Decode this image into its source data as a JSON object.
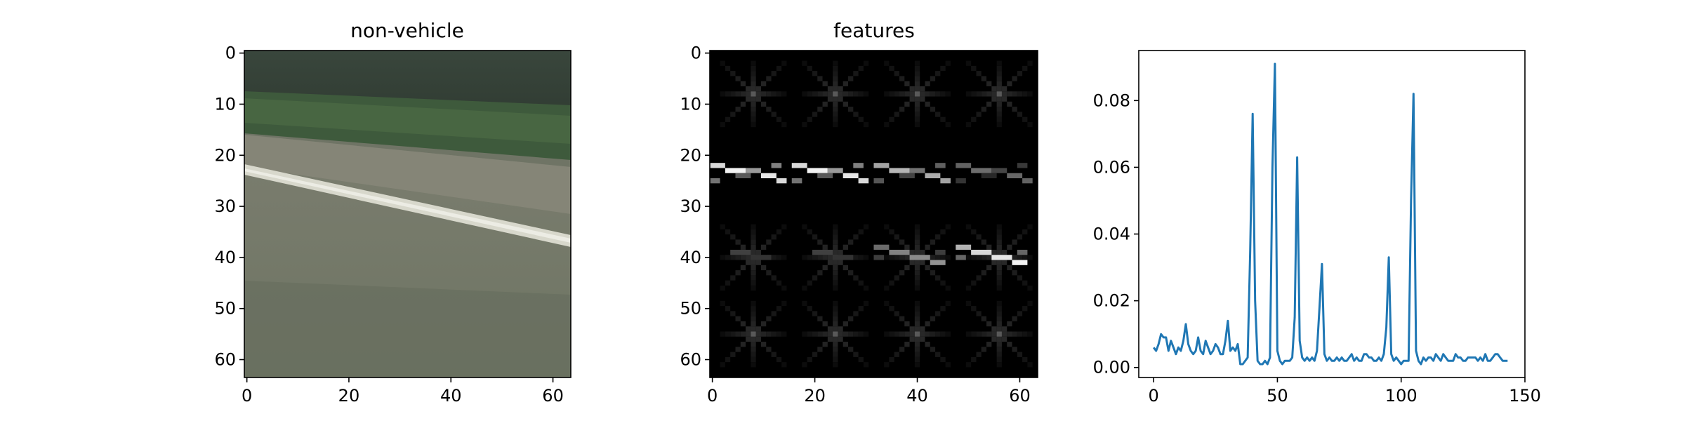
{
  "figure": {
    "background": "#ffffff"
  },
  "panels": [
    {
      "title": "non-vehicle",
      "image": "road-scene",
      "description": "",
      "xticks": [
        0,
        20,
        40,
        60
      ],
      "yticks": [
        0,
        10,
        20,
        30,
        40,
        50,
        60
      ],
      "extent": [
        0,
        64,
        0,
        64
      ]
    },
    {
      "title": "features",
      "image": "hog-feature-grid",
      "xticks": [
        0,
        20,
        40,
        60
      ],
      "yticks": [
        0,
        10,
        20,
        30,
        40,
        50,
        60
      ],
      "extent": [
        0,
        64,
        0,
        64
      ]
    }
  ],
  "chart_data": {
    "type": "line",
    "title": "",
    "xlabel": "",
    "ylabel": "",
    "xlim": [
      -6,
      150
    ],
    "ylim": [
      -0.003,
      0.095
    ],
    "xticks": [
      0,
      50,
      100,
      150
    ],
    "yticks": [
      0.0,
      0.02,
      0.04,
      0.06,
      0.08
    ],
    "ytick_labels": [
      "0.00",
      "0.02",
      "0.04",
      "0.06",
      "0.08"
    ],
    "grid": false,
    "series": [
      {
        "color": "#1f77b4",
        "x": [
          0,
          1,
          2,
          3,
          4,
          5,
          6,
          7,
          8,
          9,
          10,
          11,
          12,
          13,
          14,
          15,
          16,
          17,
          18,
          19,
          20,
          21,
          22,
          23,
          24,
          25,
          26,
          27,
          28,
          29,
          30,
          31,
          32,
          33,
          34,
          35,
          36,
          37,
          38,
          39,
          40,
          41,
          42,
          43,
          44,
          45,
          46,
          47,
          48,
          49,
          50,
          51,
          52,
          53,
          54,
          55,
          56,
          57,
          58,
          59,
          60,
          61,
          62,
          63,
          64,
          65,
          66,
          67,
          68,
          69,
          70,
          71,
          72,
          73,
          74,
          75,
          76,
          77,
          78,
          79,
          80,
          81,
          82,
          83,
          84,
          85,
          86,
          87,
          88,
          89,
          90,
          91,
          92,
          93,
          94,
          95,
          96,
          97,
          98,
          99,
          100,
          101,
          102,
          103,
          104,
          105,
          106,
          107,
          108,
          109,
          110,
          111,
          112,
          113,
          114,
          115,
          116,
          117,
          118,
          119,
          120,
          121,
          122,
          123,
          124,
          125,
          126,
          127,
          128,
          129,
          130,
          131,
          132,
          133,
          134,
          135,
          136,
          137,
          138,
          139,
          140,
          141,
          142,
          143
        ],
        "values": [
          0.006,
          0.005,
          0.007,
          0.01,
          0.009,
          0.009,
          0.005,
          0.008,
          0.006,
          0.004,
          0.006,
          0.005,
          0.008,
          0.013,
          0.007,
          0.005,
          0.004,
          0.005,
          0.009,
          0.005,
          0.004,
          0.008,
          0.006,
          0.004,
          0.005,
          0.007,
          0.006,
          0.004,
          0.004,
          0.008,
          0.014,
          0.005,
          0.006,
          0.005,
          0.007,
          0.001,
          0.001,
          0.002,
          0.003,
          0.035,
          0.076,
          0.02,
          0.002,
          0.001,
          0.001,
          0.002,
          0.001,
          0.003,
          0.06,
          0.091,
          0.005,
          0.002,
          0.001,
          0.002,
          0.002,
          0.002,
          0.003,
          0.015,
          0.063,
          0.008,
          0.003,
          0.002,
          0.003,
          0.002,
          0.003,
          0.002,
          0.005,
          0.018,
          0.031,
          0.004,
          0.002,
          0.003,
          0.002,
          0.002,
          0.003,
          0.002,
          0.003,
          0.002,
          0.002,
          0.003,
          0.004,
          0.002,
          0.003,
          0.002,
          0.002,
          0.004,
          0.004,
          0.003,
          0.003,
          0.002,
          0.002,
          0.003,
          0.002,
          0.004,
          0.012,
          0.033,
          0.004,
          0.002,
          0.003,
          0.002,
          0.001,
          0.002,
          0.002,
          0.002,
          0.05,
          0.082,
          0.005,
          0.002,
          0.001,
          0.003,
          0.002,
          0.003,
          0.003,
          0.002,
          0.004,
          0.003,
          0.002,
          0.004,
          0.003,
          0.002,
          0.002,
          0.002,
          0.004,
          0.003,
          0.003,
          0.002,
          0.002,
          0.003,
          0.003,
          0.003,
          0.003,
          0.002,
          0.003,
          0.002,
          0.004,
          0.002,
          0.002,
          0.003,
          0.004,
          0.004,
          0.003,
          0.002,
          0.002,
          0.002
        ]
      }
    ]
  }
}
